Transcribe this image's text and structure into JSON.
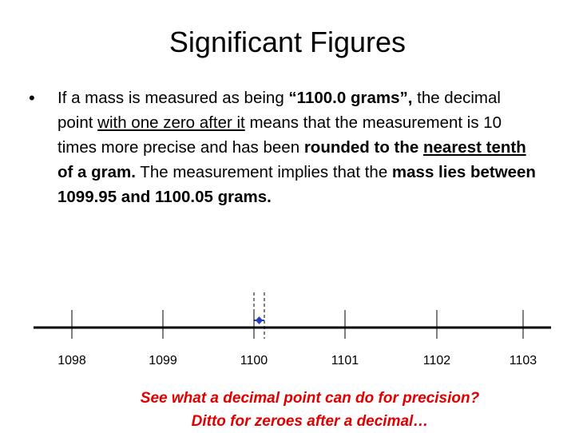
{
  "title": "Significant Figures",
  "bullet": {
    "runs": [
      "If a mass is measured as being ",
      "“1100.0 grams”,",
      " the decimal point ",
      "with one zero after it",
      "  means that the measurement is 10 times more precise and has been ",
      "rounded to the ",
      "nearest tenth",
      " of a gram.",
      "  The measurement implies that the ",
      "mass lies between 1099.95 and 1100.05 grams."
    ]
  },
  "number_line": {
    "ticks": [
      "1098",
      "1099",
      "1100",
      "1101",
      "1102",
      "1103"
    ]
  },
  "footer": {
    "lines": [
      "See what a decimal point can do for precision?",
      "Ditto for zeroes after a decimal…"
    ]
  }
}
